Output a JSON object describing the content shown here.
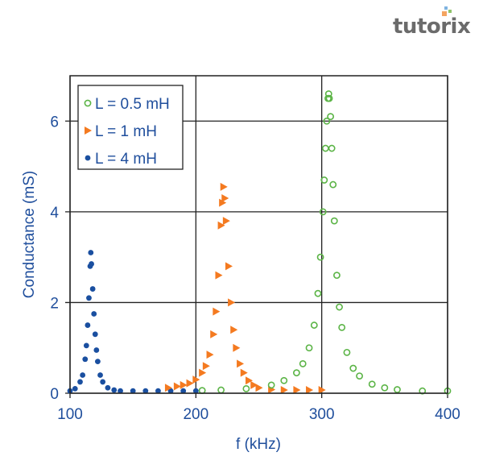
{
  "logo": {
    "text": "tutorix"
  },
  "chart_data": {
    "type": "scatter",
    "xlabel": "f (kHz)",
    "ylabel": "Conductance (mS)",
    "xlim": [
      100,
      400
    ],
    "ylim": [
      0,
      7
    ],
    "xticks": [
      100,
      200,
      300,
      400
    ],
    "yticks": [
      0,
      2,
      4,
      6
    ],
    "grid": true,
    "legend_placement": "top-left",
    "text_color": "#1f4e9c",
    "series": [
      {
        "name": "L = 0.5 mH",
        "marker": "open-circle",
        "color": "#5bb446",
        "x": [
          205,
          220,
          240,
          260,
          270,
          280,
          285,
          290,
          294,
          297,
          299,
          301,
          302,
          303,
          304,
          305,
          305.5,
          306,
          307,
          308,
          309,
          310,
          312,
          314,
          316,
          320,
          325,
          330,
          340,
          350,
          360,
          380,
          400
        ],
        "y": [
          0.06,
          0.07,
          0.1,
          0.18,
          0.28,
          0.45,
          0.65,
          1.0,
          1.5,
          2.2,
          3.0,
          4.0,
          4.7,
          5.4,
          6.0,
          6.5,
          6.6,
          6.5,
          6.1,
          5.4,
          4.6,
          3.8,
          2.6,
          1.9,
          1.45,
          0.9,
          0.55,
          0.38,
          0.2,
          0.12,
          0.08,
          0.05,
          0.05
        ]
      },
      {
        "name": "L = 1 mH",
        "marker": "right-triangle",
        "color": "#f47a20",
        "x": [
          178,
          185,
          190,
          195,
          200,
          205,
          208,
          211,
          214,
          216,
          218,
          220,
          221,
          222,
          223,
          224,
          226,
          228,
          230,
          232,
          235,
          238,
          242,
          246,
          250,
          260,
          270,
          280,
          290,
          300
        ],
        "y": [
          0.12,
          0.15,
          0.18,
          0.22,
          0.3,
          0.45,
          0.6,
          0.85,
          1.3,
          1.8,
          2.6,
          3.7,
          4.2,
          4.55,
          4.3,
          3.8,
          2.8,
          2.0,
          1.4,
          1.0,
          0.65,
          0.45,
          0.28,
          0.18,
          0.12,
          0.08,
          0.07,
          0.07,
          0.07,
          0.07
        ]
      },
      {
        "name": "L = 4 mH",
        "marker": "filled-circle",
        "color": "#1a4fa0",
        "x": [
          100,
          104,
          108,
          110,
          112,
          113,
          114,
          115,
          116,
          116.5,
          117,
          118,
          119,
          120,
          121,
          122,
          124,
          126,
          130,
          135,
          140,
          150,
          160,
          170,
          180,
          190,
          200
        ],
        "y": [
          0.05,
          0.1,
          0.25,
          0.4,
          0.75,
          1.05,
          1.5,
          2.1,
          2.8,
          3.1,
          2.85,
          2.3,
          1.75,
          1.3,
          0.95,
          0.7,
          0.4,
          0.25,
          0.12,
          0.07,
          0.05,
          0.05,
          0.05,
          0.05,
          0.05,
          0.05,
          0.05
        ]
      }
    ]
  }
}
